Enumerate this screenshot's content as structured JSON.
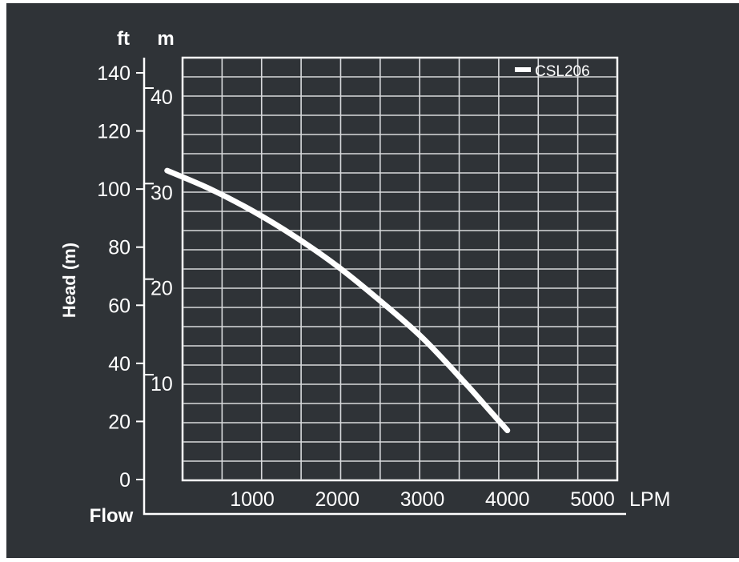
{
  "chart_data": {
    "type": "line",
    "background_color": "#2f3337",
    "foreground_color": "#ffffff",
    "ylabel": "Head (m)",
    "xlabel_left": "Flow",
    "x_unit": "LPM",
    "y_unit_left": "ft",
    "y_unit_right": "m",
    "xlim": [
      0,
      5000
    ],
    "ylim_m": [
      0,
      45
    ],
    "ylim_ft": [
      0,
      147.6
    ],
    "x_ticks": [
      {
        "value": 1000,
        "label": "1000"
      },
      {
        "value": 2000,
        "label": "2000"
      },
      {
        "value": 3000,
        "label": "3000"
      },
      {
        "value": 4000,
        "label": "4000"
      },
      {
        "value": 5000,
        "label": "5000"
      }
    ],
    "y_ticks_ft": [
      {
        "value": 0,
        "label": "0"
      },
      {
        "value": 20,
        "label": "20"
      },
      {
        "value": 40,
        "label": "40"
      },
      {
        "value": 60,
        "label": "60"
      },
      {
        "value": 80,
        "label": "80"
      },
      {
        "value": 100,
        "label": "100"
      },
      {
        "value": 120,
        "label": "120"
      },
      {
        "value": 140,
        "label": "140"
      }
    ],
    "y_ticks_m": [
      {
        "value": 10,
        "label": "10"
      },
      {
        "value": 20,
        "label": "20"
      },
      {
        "value": 30,
        "label": "30"
      },
      {
        "value": 40,
        "label": "40"
      }
    ],
    "grid": true,
    "legend_position": "top-right",
    "series": [
      {
        "name": "CSL206",
        "color": "#ffffff",
        "x": [
          0,
          500,
          1000,
          1500,
          2000,
          2500,
          3000,
          3500,
          3800,
          4000
        ],
        "y": [
          32.2,
          30.3,
          28.0,
          25.3,
          22.2,
          18.6,
          14.7,
          10.0,
          7.0,
          5.0
        ]
      }
    ]
  }
}
